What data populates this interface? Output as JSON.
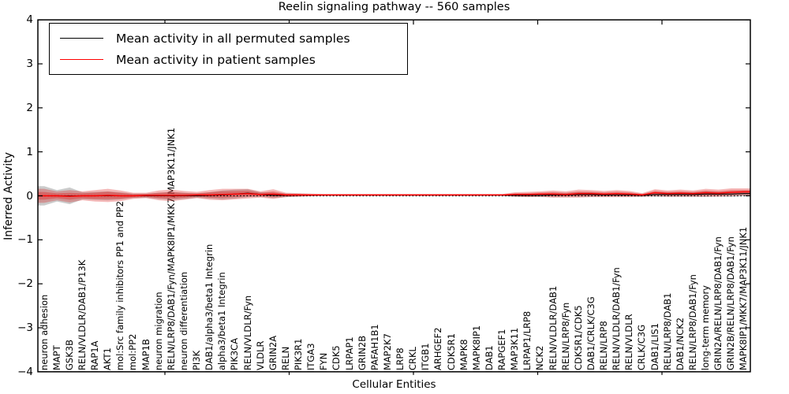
{
  "chart_data": {
    "type": "line",
    "title": "Reelin signaling pathway -- 560 samples",
    "xlabel": "Cellular Entities",
    "ylabel": "Inferred Activity",
    "ylim": [
      -4,
      4
    ],
    "yticks": [
      4,
      3,
      2,
      1,
      0,
      -1,
      -2,
      -3,
      -4
    ],
    "grid": false,
    "legend_position": "upper left",
    "zero_line": "dotted black horizontal line at y=0",
    "categories": [
      "neuron adhesion",
      "MAPT",
      "GSK3B",
      "RELN/VLDLR/DAB1/P13K",
      "RAP1A",
      "AKT1",
      "mol:Src family inhibitors PP1 and PP2",
      "mol:PP2",
      "MAP1B",
      "neuron migration",
      "RELN/LRP8/DAB1/Fyn/MAPK8IP1/MKK7/MAP3K11/JNK1",
      "neuron differentiation",
      "PI3K",
      "DAB1/alpha3/beta1 Integrin",
      "alpha3/beta1 Integrin",
      "PIK3CA",
      "RELN/VLDLR/Fyn",
      "VLDLR",
      "GRIN2A",
      "RELN",
      "PIK3R1",
      "ITGA3",
      "FYN",
      "CDK5",
      "LRPAP1",
      "GRIN2B",
      "PAFAH1B1",
      "MAP2K7",
      "LRP8",
      "CRKL",
      "ITGB1",
      "ARHGEF2",
      "CDK5R1",
      "MAPK8",
      "MAPK8IP1",
      "DAB1",
      "RAPGEF1",
      "MAP3K11",
      "LRPAP1/LRP8",
      "NCK2",
      "RELN/VLDLR/DAB1",
      "RELN/LRP8/Fyn",
      "CDK5R1/CDK5",
      "DAB1/CRLK/C3G",
      "RELN/LRP8",
      "RELN/VLDLR/DAB1/Fyn",
      "RELN/VLDLR",
      "CRLK/C3G",
      "DAB1/LIS1",
      "RELN/LRP8/DAB1",
      "DAB1/NCK2",
      "RELN/LRP8/DAB1/Fyn",
      "long-term memory",
      "GRIN2A/RELN/LRP8/DAB1/Fyn",
      "GRIN2B/RELN/LRP8/DAB1/Fyn",
      "MAPK8IP1/MKK7/MAP3K11/JNK1"
    ],
    "series": [
      {
        "name": "Mean activity in all permuted samples",
        "color": "#000000",
        "band_color": "#8c8c8c",
        "values": [
          0,
          0,
          0,
          0,
          0,
          0,
          0,
          0,
          0,
          0,
          0,
          0,
          0,
          0.01,
          0.02,
          0.04,
          0.06,
          0.03,
          0.01,
          0.01,
          0.015,
          0.015,
          0.015,
          0.015,
          0.015,
          0.015,
          0.015,
          0.015,
          0.015,
          0.015,
          0.015,
          0.015,
          0.015,
          0.015,
          0.015,
          0.015,
          0.015,
          0.01,
          0.01,
          0.01,
          0.02,
          0.02,
          0.03,
          0.03,
          0.02,
          0.02,
          0.02,
          0.01,
          0.03,
          0.03,
          0.03,
          0.03,
          0.04,
          0.04,
          0.04,
          0.05
        ],
        "band_halfwidth": [
          0.22,
          0.13,
          0.19,
          0.08,
          0.09,
          0.1,
          0.08,
          0.05,
          0.05,
          0.07,
          0.09,
          0.07,
          0.05,
          0.07,
          0.1,
          0.1,
          0.09,
          0.05,
          0.06,
          0.04,
          0.03,
          0.02,
          0.012,
          0.012,
          0.012,
          0.012,
          0.012,
          0.012,
          0.012,
          0.012,
          0.012,
          0.012,
          0.012,
          0.012,
          0.012,
          0.012,
          0.012,
          0.03,
          0.035,
          0.04,
          0.05,
          0.04,
          0.05,
          0.05,
          0.04,
          0.04,
          0.04,
          0.03,
          0.05,
          0.05,
          0.05,
          0.05,
          0.06,
          0.05,
          0.06,
          0.06
        ]
      },
      {
        "name": "Mean activity in patient samples",
        "color": "#ff0000",
        "band_color": "#dd2222",
        "values": [
          0,
          0,
          -0.01,
          0,
          0,
          0.01,
          0,
          0,
          0.01,
          0.01,
          0.01,
          0.01,
          0.02,
          0.02,
          0.03,
          0.04,
          0.05,
          0.03,
          0.04,
          0.02,
          0.02,
          0.02,
          0.02,
          0.02,
          0.02,
          0.02,
          0.02,
          0.02,
          0.02,
          0.02,
          0.02,
          0.02,
          0.02,
          0.02,
          0.02,
          0.02,
          0.02,
          0.03,
          0.03,
          0.04,
          0.04,
          0.03,
          0.05,
          0.05,
          0.04,
          0.05,
          0.04,
          0.02,
          0.07,
          0.05,
          0.06,
          0.05,
          0.07,
          0.06,
          0.08,
          0.09
        ],
        "band_halfwidth": [
          0.16,
          0.1,
          0.14,
          0.1,
          0.13,
          0.15,
          0.12,
          0.07,
          0.06,
          0.11,
          0.13,
          0.1,
          0.07,
          0.11,
          0.13,
          0.12,
          0.11,
          0.07,
          0.11,
          0.05,
          0.04,
          0.03,
          0.02,
          0.02,
          0.02,
          0.02,
          0.02,
          0.02,
          0.02,
          0.02,
          0.02,
          0.02,
          0.02,
          0.02,
          0.02,
          0.02,
          0.02,
          0.05,
          0.06,
          0.06,
          0.08,
          0.07,
          0.09,
          0.08,
          0.07,
          0.08,
          0.07,
          0.04,
          0.08,
          0.07,
          0.08,
          0.07,
          0.09,
          0.08,
          0.09,
          0.08
        ]
      }
    ]
  }
}
